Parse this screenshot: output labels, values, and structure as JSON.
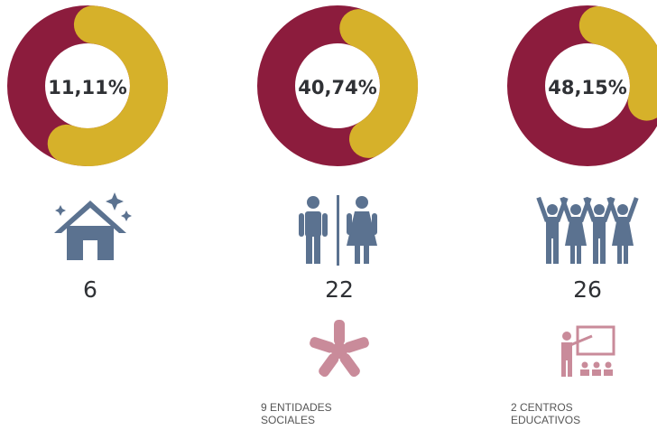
{
  "items": [
    {
      "percent": "11,11%",
      "count": "6"
    },
    {
      "percent": "40,74%",
      "count": "22",
      "note": [
        "9 ENTIDADES",
        "SOCIALES"
      ]
    },
    {
      "percent": "48,15%",
      "count": "26",
      "note": [
        "2 CENTROS",
        "EDUCATIVOS"
      ]
    }
  ]
}
